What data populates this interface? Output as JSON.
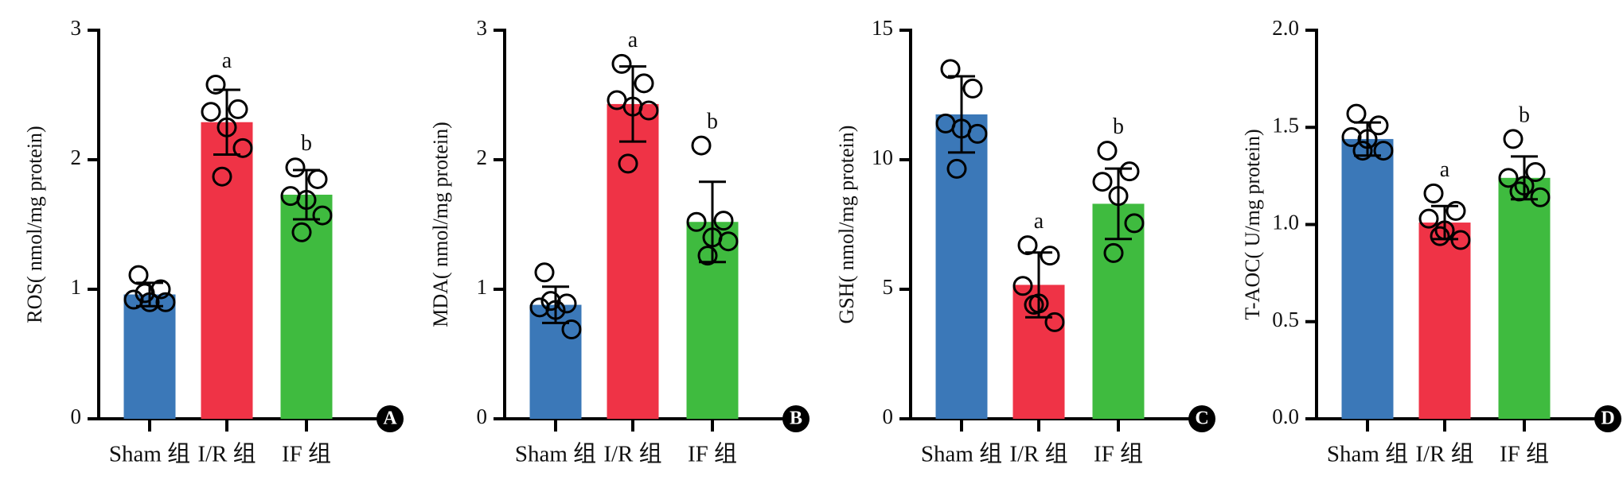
{
  "chart_data": [
    {
      "type": "bar",
      "panel": "A",
      "ylabel": "ROS( nmol/mg protein)",
      "categories": [
        "Sham 组",
        "I/R 组",
        "IF 组"
      ],
      "colors": [
        "#3b78b8",
        "#ef3346",
        "#3fbb3f"
      ],
      "values": [
        0.96,
        2.29,
        1.73
      ],
      "errors": [
        0.09,
        0.25,
        0.19
      ],
      "annotations": [
        null,
        "a",
        "b"
      ],
      "points": [
        [
          1.11,
          1.0,
          0.92,
          0.9,
          0.9,
          0.97
        ],
        [
          2.58,
          2.39,
          2.37,
          2.25,
          2.09,
          1.87
        ],
        [
          1.94,
          1.85,
          1.72,
          1.69,
          1.57,
          1.44
        ]
      ],
      "ylim": [
        0,
        3
      ],
      "yticks": [
        0,
        1,
        2,
        3
      ]
    },
    {
      "type": "bar",
      "panel": "B",
      "ylabel": "MDA( nmol/mg protein)",
      "categories": [
        "Sham 组",
        "I/R 组",
        "IF 组"
      ],
      "colors": [
        "#3b78b8",
        "#ef3346",
        "#3fbb3f"
      ],
      "values": [
        0.88,
        2.43,
        1.52
      ],
      "errors": [
        0.14,
        0.29,
        0.31
      ],
      "annotations": [
        null,
        "a",
        "b"
      ],
      "points": [
        [
          1.13,
          0.89,
          0.86,
          0.84,
          0.69,
          0.91
        ],
        [
          2.74,
          2.59,
          2.46,
          2.41,
          2.38,
          1.97
        ],
        [
          2.11,
          1.53,
          1.52,
          1.4,
          1.37,
          1.26
        ]
      ],
      "ylim": [
        0,
        3
      ],
      "yticks": [
        0,
        1,
        2,
        3
      ]
    },
    {
      "type": "bar",
      "panel": "C",
      "ylabel": "GSH( nmol/mg protein)",
      "categories": [
        "Sham 组",
        "I/R 组",
        "IF 组"
      ],
      "colors": [
        "#3b78b8",
        "#ef3346",
        "#3fbb3f"
      ],
      "values": [
        11.75,
        5.17,
        8.3
      ],
      "errors": [
        1.47,
        1.25,
        1.36
      ],
      "annotations": [
        null,
        "a",
        "b"
      ],
      "points": [
        [
          13.5,
          12.75,
          11.4,
          11.2,
          11.0,
          9.65
        ],
        [
          6.7,
          6.3,
          5.13,
          4.45,
          3.73,
          4.4
        ],
        [
          10.35,
          9.55,
          9.15,
          8.6,
          7.55,
          6.4
        ]
      ],
      "ylim": [
        0,
        15
      ],
      "yticks": [
        0,
        5,
        10,
        15
      ]
    },
    {
      "type": "bar",
      "panel": "D",
      "ylabel": "T-AOC( U/mg protein)",
      "categories": [
        "Sham 组",
        "I/R 组",
        "IF 组"
      ],
      "colors": [
        "#3b78b8",
        "#ef3346",
        "#3fbb3f"
      ],
      "values": [
        1.44,
        1.01,
        1.24
      ],
      "errors": [
        0.085,
        0.085,
        0.11
      ],
      "annotations": [
        null,
        "a",
        "b"
      ],
      "points": [
        [
          1.57,
          1.51,
          1.45,
          1.44,
          1.38,
          1.38
        ],
        [
          1.16,
          1.07,
          1.03,
          0.97,
          0.92,
          0.94
        ],
        [
          1.44,
          1.27,
          1.24,
          1.2,
          1.14,
          1.17
        ]
      ],
      "ylim": [
        0,
        2
      ],
      "yticks": [
        {
          "value": 0,
          "label": "0.0"
        },
        0.5,
        {
          "value": 1,
          "label": "1.0"
        },
        1.5,
        {
          "value": 2,
          "label": "2.0"
        }
      ]
    }
  ]
}
